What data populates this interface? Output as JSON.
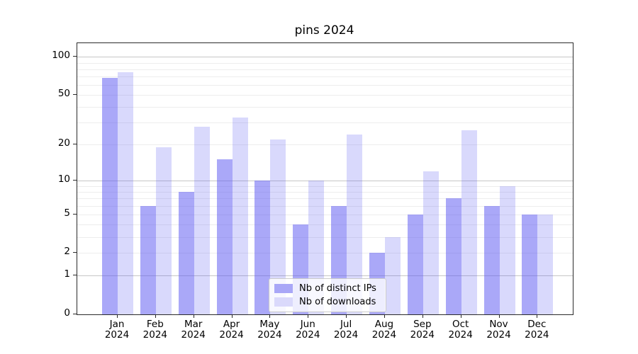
{
  "chart_data": {
    "type": "bar",
    "title": "pins 2024",
    "categories": [
      "Jan",
      "Feb",
      "Mar",
      "Apr",
      "May",
      "Jun",
      "Jul",
      "Aug",
      "Sep",
      "Oct",
      "Nov",
      "Dec"
    ],
    "x_year_label": "2024",
    "series": [
      {
        "name": "Nb of distinct IPs",
        "color": "rgba(92,89,241,0.52)",
        "swatch_color": "#a9a7f7",
        "values": [
          68,
          6,
          8,
          15,
          10,
          4,
          6,
          2,
          5,
          7,
          6,
          5
        ]
      },
      {
        "name": "Nb of downloads",
        "color": "rgba(92,89,241,0.23)",
        "swatch_color": "#dad9fb",
        "values": [
          76,
          19,
          28,
          33,
          22,
          10,
          24,
          3,
          12,
          26,
          9,
          5
        ]
      }
    ],
    "yscale": "log1p",
    "ylim": [
      0,
      128
    ],
    "yticks": [
      100,
      50,
      20,
      10,
      5,
      2,
      1,
      0
    ],
    "grid": {
      "on": true,
      "major_lines": [
        1,
        10,
        100
      ],
      "minor_lines": [
        2,
        3,
        4,
        5,
        6,
        7,
        8,
        9,
        20,
        30,
        40,
        50,
        60,
        70,
        80,
        90
      ]
    },
    "legend_position": "bottom-center"
  }
}
